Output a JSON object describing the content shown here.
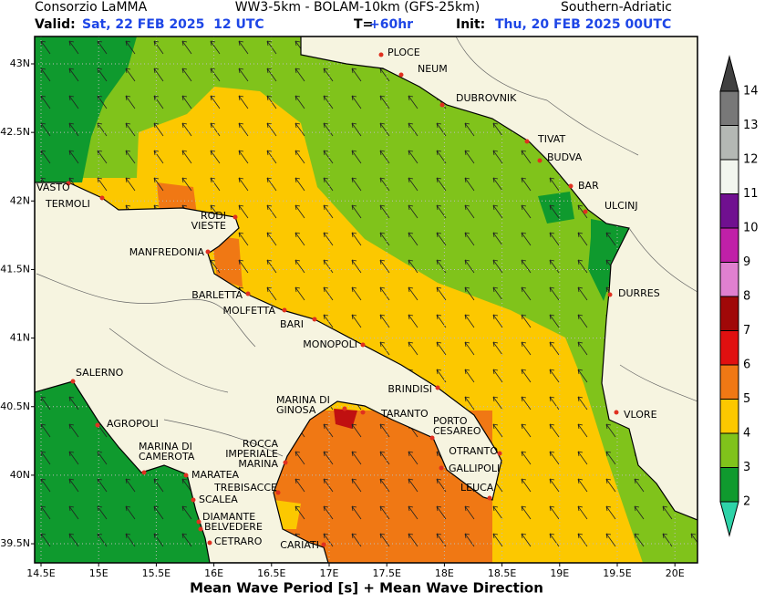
{
  "header": {
    "source": "Consorzio LaMMA",
    "model": "WW3-5km - BOLAM-10km (GFS-25km)",
    "region": "Southern-Adriatic",
    "valid_label": "Valid:",
    "valid": "Sat, 22 FEB 2025  12 UTC",
    "lead_label": "T=",
    "lead": "+60hr",
    "init_label": "Init:",
    "init": "Thu, 20 FEB 2025 00UTC"
  },
  "map": {
    "lat_labels": [
      "43N",
      "42.5N",
      "42N",
      "41.5N",
      "41N",
      "40.5N",
      "40N",
      "39.5N"
    ],
    "lon_labels": [
      "14.5E",
      "15E",
      "15.5E",
      "16E",
      "16.5E",
      "17E",
      "17.5E",
      "18E",
      "18.5E",
      "19E",
      "19.5E",
      "20E"
    ],
    "cities": [
      [
        "PLOCE"
      ],
      [
        "NEUM"
      ],
      [
        "DUBROVNIK"
      ],
      [
        "TIVAT"
      ],
      [
        "BUDVA"
      ],
      [
        "BAR"
      ],
      [
        "ULCINJ"
      ],
      [
        "DURRES"
      ],
      [
        "VLORE"
      ],
      [
        "VASTO"
      ],
      [
        "TERMOLI"
      ],
      [
        "RODI",
        "VIESTE"
      ],
      [
        "MANFREDONIA"
      ],
      [
        "BARLETTA"
      ],
      [
        "MOLFETTA"
      ],
      [
        "BARI"
      ],
      [
        "MONOPOLI"
      ],
      [
        "BRINDISI"
      ],
      [
        "MARINA DI",
        "GINOSA"
      ],
      [
        "TARANTO"
      ],
      [
        "PORTO",
        "CESAREO"
      ],
      [
        "OTRANTO"
      ],
      [
        "GALLIPOLI"
      ],
      [
        "LEUCA"
      ],
      [
        "ROCCA",
        "IMPERIALE",
        "MARINA"
      ],
      [
        "TREBISACCE"
      ],
      [
        "CARIATI"
      ],
      [
        "SALERNO"
      ],
      [
        "AGROPOLI"
      ],
      [
        "MARINA DI",
        "CAMEROTA"
      ],
      [
        "MARATEA"
      ],
      [
        "SCALEA"
      ],
      [
        "DIAMANTE"
      ],
      [
        "BELVEDERE"
      ],
      [
        "CETRARO"
      ]
    ]
  },
  "colorbar": {
    "levels": [
      2,
      3,
      4,
      5,
      6,
      7,
      8,
      9,
      10,
      11,
      12,
      13,
      14
    ],
    "colors": [
      "#2ed3a8",
      "#0f9a2e",
      "#80c31b",
      "#fcc800",
      "#f07814",
      "#e01010",
      "#a00808",
      "#e080d0",
      "#c020a8",
      "#701090",
      "#f2f6ee",
      "#b4b8b4",
      "#787878",
      "#404040"
    ]
  },
  "footer": "Mean Wave Period [s] + Mean Wave Direction"
}
